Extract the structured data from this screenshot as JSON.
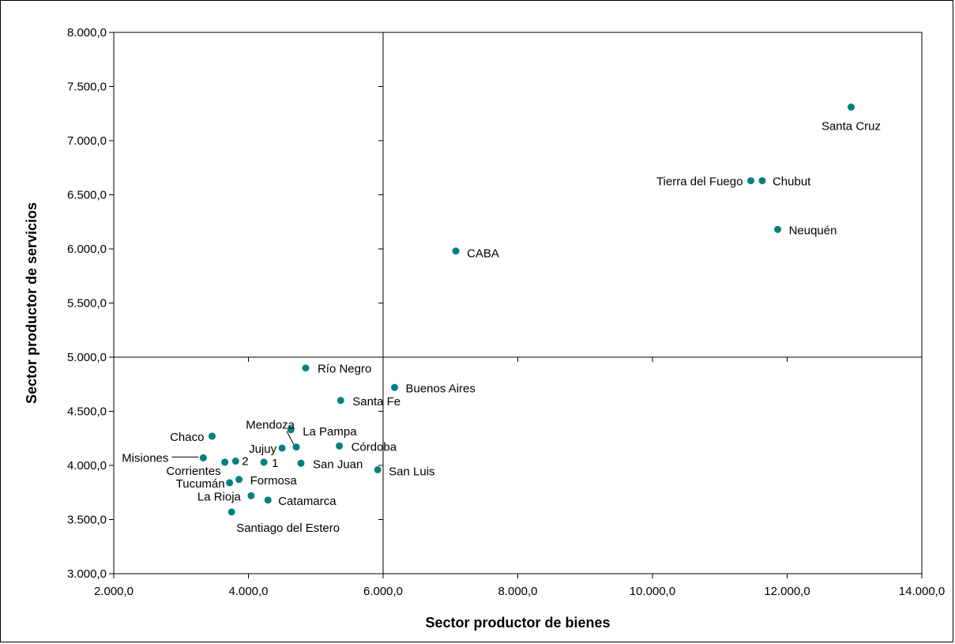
{
  "chart_data": {
    "type": "scatter",
    "xlabel": "Sector productor de bienes",
    "ylabel": "Sector productor de servicios",
    "xlim": [
      2000,
      14000
    ],
    "ylim": [
      3000,
      8000
    ],
    "x_ticks": [
      2000,
      4000,
      6000,
      8000,
      10000,
      12000,
      14000
    ],
    "y_ticks": [
      3000,
      3500,
      4000,
      4500,
      5000,
      5500,
      6000,
      6500,
      7000,
      7500,
      8000
    ],
    "x_tick_labels": [
      "2.000,0",
      "4.000,0",
      "6.000,0",
      "8.000,0",
      "10.000,0",
      "12.000,0",
      "14.000,0"
    ],
    "y_tick_labels": [
      "3.000,0",
      "3.500,0",
      "4.000,0",
      "4.500,0",
      "5.000,0",
      "5.500,0",
      "6.000,0",
      "6.500,0",
      "7.000,0",
      "7.500,0",
      "8.000,0"
    ],
    "reference_lines": {
      "x": 6000,
      "y": 5000
    },
    "grid": false,
    "marker_color": "#008080",
    "points": [
      {
        "label": "Santa Cruz",
        "x": 12950,
        "y": 7310
      },
      {
        "label": "Tierra del Fuego",
        "x": 11460,
        "y": 6630
      },
      {
        "label": "Chubut",
        "x": 11630,
        "y": 6630
      },
      {
        "label": "Neuquén",
        "x": 11860,
        "y": 6180
      },
      {
        "label": "CABA",
        "x": 7080,
        "y": 5980
      },
      {
        "label": "Río Negro",
        "x": 4850,
        "y": 4900
      },
      {
        "label": "Buenos Aires",
        "x": 6170,
        "y": 4720
      },
      {
        "label": "Santa Fe",
        "x": 5370,
        "y": 4600
      },
      {
        "label": "La Pampa",
        "x": 4630,
        "y": 4330
      },
      {
        "label": "Mendoza",
        "x": 4710,
        "y": 4170
      },
      {
        "label": "Chaco",
        "x": 3460,
        "y": 4270
      },
      {
        "label": "Córdoba",
        "x": 5350,
        "y": 4180
      },
      {
        "label": "Jujuy",
        "x": 4500,
        "y": 4160
      },
      {
        "label": "Misiones",
        "x": 3330,
        "y": 4070
      },
      {
        "label": "Corrientes",
        "x": 3650,
        "y": 4030
      },
      {
        "label": "2",
        "x": 3810,
        "y": 4040
      },
      {
        "label": "1",
        "x": 4230,
        "y": 4030
      },
      {
        "label": "San Juan",
        "x": 4780,
        "y": 4020
      },
      {
        "label": "San Luis",
        "x": 5920,
        "y": 3960
      },
      {
        "label": "Tucumán",
        "x": 3720,
        "y": 3840
      },
      {
        "label": "Formosa",
        "x": 3860,
        "y": 3870
      },
      {
        "label": "La Rioja",
        "x": 4040,
        "y": 3720
      },
      {
        "label": "Catamarca",
        "x": 4290,
        "y": 3680
      },
      {
        "label": "Santiago del Estero",
        "x": 3750,
        "y": 3570
      }
    ]
  }
}
